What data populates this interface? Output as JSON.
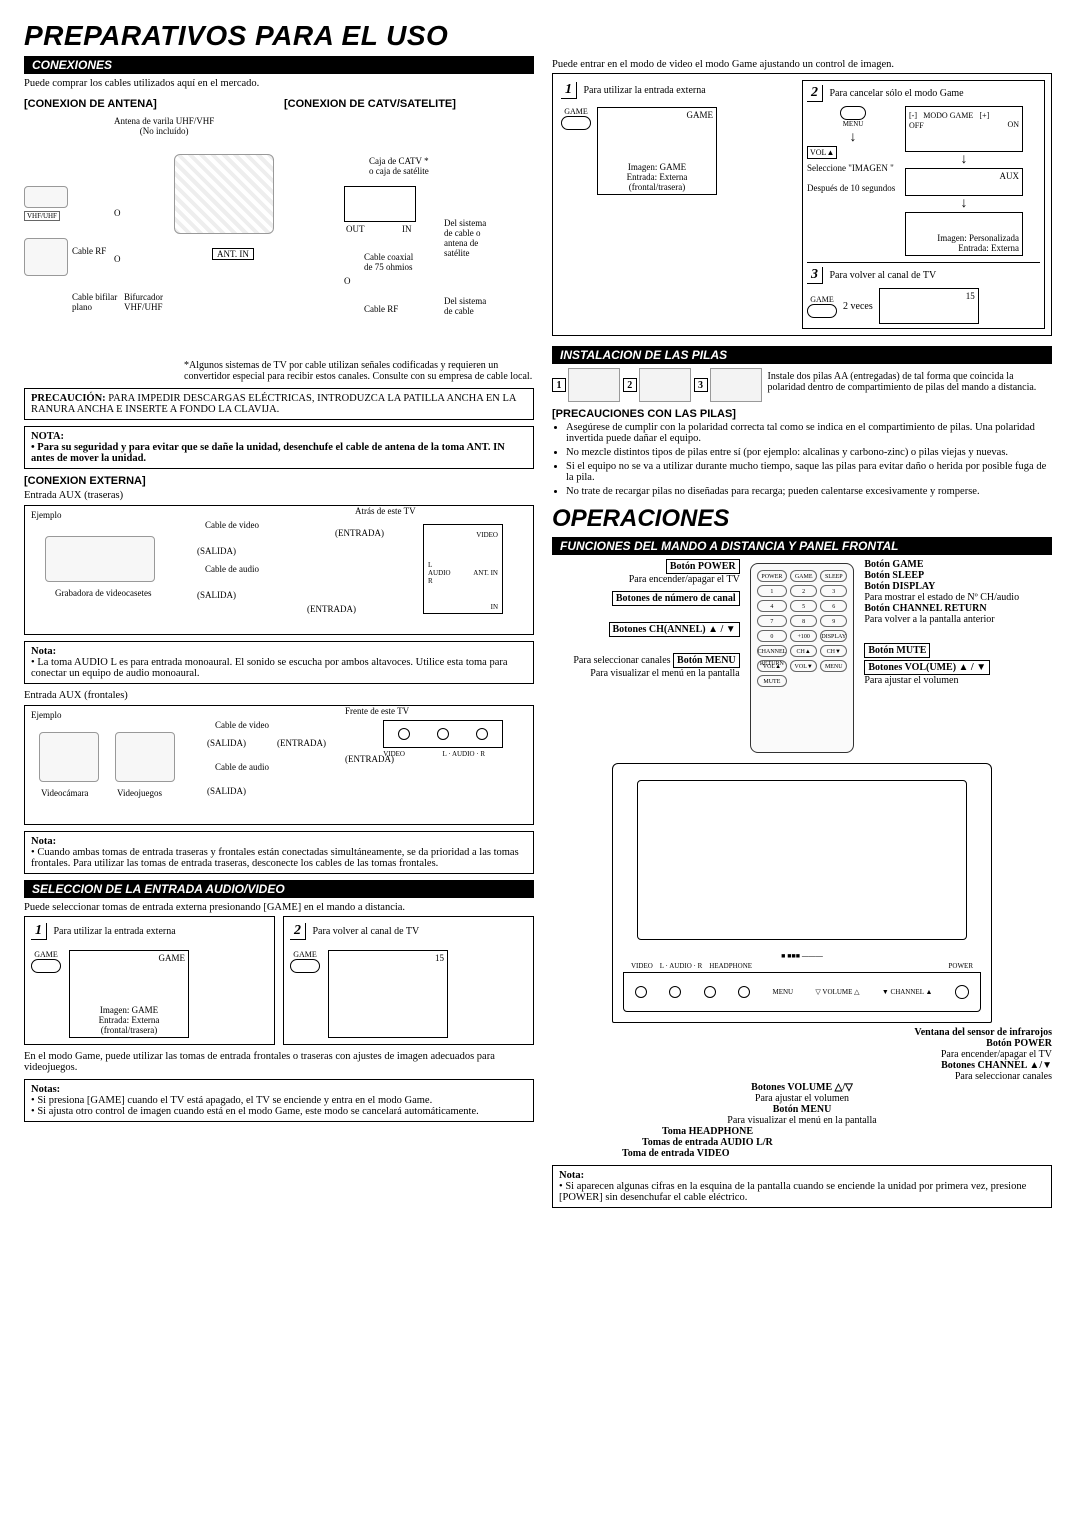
{
  "title_main": "PREPARATIVOS PARA EL USO",
  "title_ops": "OPERACIONES",
  "sections": {
    "conexiones": "CONEXIONES",
    "seleccion": "SELECCION DE LA ENTRADA AUDIO/VIDEO",
    "pilas": "INSTALACION DE LAS PILAS",
    "mando": "FUNCIONES DEL MANDO A DISTANCIA Y PANEL FRONTAL"
  },
  "left": {
    "intro": "Puede comprar los cables utilizados aquí en el mercado.",
    "ant_head": "[CONEXION DE ANTENA]",
    "catv_head": "[CONEXION DE CATV/SATELITE]",
    "ant_label": "Antena de varila UHF/VHF\n(No incluído)",
    "o_label": "O",
    "vhfuhf": "VHF/UHF",
    "cable_rf": "Cable RF",
    "bifurcador": "Bifurcador\nVHF/UHF",
    "bifilar": "Cable bifilar\nplano",
    "antin": "ANT. IN",
    "catv_box1": "Caja de CATV *\no caja de satélite",
    "catv_out": "OUT",
    "catv_in": "IN",
    "coax": "Cable coaxial\nde 75 ohmios",
    "sys_cable_sat": "Del sistema\nde cable o\nantena de\nsatélite",
    "sys_cable": "Del sistema\nde cable",
    "catv_foot": "*Algunos sistemas de TV por cable utilizan señales codificadas y requieren un convertidor especial para recibir estos canales. Consulte con su empresa de cable local.",
    "caution": "PRECAUCIÓN: PARA IMPEDIR DESCARGAS ELÉCTRICAS, INTRODUZCA LA PATILLA ANCHA EN LA RANURA ANCHA E INSERTE A FONDO LA CLAVIJA.",
    "nota1_h": "NOTA:",
    "nota1_b": "• Para su seguridad y para evitar que se dañe la unidad, desenchufe el cable de antena de la toma ANT. IN antes de mover la unidad.",
    "ext_head": "[CONEXION EXTERNA]",
    "aux_rear": "Entrada AUX (traseras)",
    "ejemplo": "Ejemplo",
    "vcr": "Grabadora de videocasetes",
    "cable_video": "Cable de video",
    "cable_audio": "Cable de audio",
    "salida": "(SALIDA)",
    "entrada": "(ENTRADA)",
    "atras": "Atrás de este TV",
    "video_j": "VIDEO",
    "laudio": "L",
    "raudio": "R",
    "audio_lbl": "AUDIO",
    "in_lbl": "IN",
    "nota2_h": "Nota:",
    "nota2_b": "La toma AUDIO L es para entrada monoaural. El sonido se escucha por ambos altavoces. Utilice esta toma para conectar un equipo de audio monoaural.",
    "aux_front": "Entrada AUX (frontales)",
    "frente": "Frente de este TV",
    "videocam": "Videocámara",
    "videojuegos": "Videojuegos",
    "l_audio_r": "L · AUDIO · R",
    "nota3_h": "Nota:",
    "nota3_b": "Cuando ambas tomas de entrada traseras y frontales están conectadas simultáneamente, se da prioridad a las tomas frontales. Para utilizar las tomas de entrada traseras, desconecte los cables de las tomas frontales.",
    "sel_intro": "Puede seleccionar tomas de entrada externa presionando [GAME] en el mando a distancia.",
    "step1": "Para utilizar la entrada externa",
    "step2": "Para volver al canal de TV",
    "game_txt": "GAME",
    "img_game": "Imagen: GAME",
    "ent_ext": "Entrada: Externa",
    "front_rear": "(frontal/trasera)",
    "ch15": "15",
    "game_mode_note": "En el modo Game, puede utilizar las tomas de entrada frontales o traseras con ajustes de imagen adecuados para videojuegos.",
    "notas_h": "Notas:",
    "notas_1": "Si presiona [GAME] cuando el TV está apagado, el TV se enciende y entra en el modo Game.",
    "notas_2": "Si ajusta otro control de imagen cuando está en el modo Game, este modo se cancelará automáticamente."
  },
  "right": {
    "top_intro": "Puede entrar en el modo de video el modo Game ajustando un control de imagen.",
    "s1": "Para utilizar la entrada externa",
    "s2": "Para cancelar sólo el modo Game",
    "s3": "Para volver al canal de TV",
    "menu": "MENU",
    "vol_up": "VOL▲",
    "sel_img": "Seleccione \"IMAGEN \"",
    "despues": "Después de 10 segundos",
    "modo_game": "MODO GAME",
    "off": "OFF",
    "on": "ON",
    "minus": "[-]",
    "plus": "[+]",
    "aux": "AUX",
    "img_pers": "Imagen: Personalizada",
    "ent_ext": "Entrada: Externa",
    "two_times": "2 veces",
    "game": "GAME",
    "img_game": "Imagen: GAME",
    "front_rear": "(frontal/trasera)",
    "ch15": "15",
    "pilas_text": "Instale dos pilas AA (entregadas) de tal forma que coincida la polaridad dentro de compartimiento de pilas del mando a distancia.",
    "prec_h": "[PRECAUCIONES CON LAS PILAS]",
    "prec_1": "Asegúrese de cumplir con la polaridad correcta tal como se indica en el compartimiento de pilas. Una polaridad invertida puede dañar el equipo.",
    "prec_2": "No mezcle distintos tipos de pilas entre sí (por ejemplo: alcalinas y carbono-zinc) o pilas viejas y nuevas.",
    "prec_3": "Si el equipo no se va a utilizar durante mucho tiempo, saque las pilas para evitar daño o herida por posible fuga de la pila.",
    "prec_4": "No trate de recargar pilas no diseñadas para recarga; pueden calentarse excesivamente y romperse.",
    "remote_btns": [
      "POWER",
      "GAME",
      "SLEEP",
      "1",
      "2",
      "3",
      "4",
      "5",
      "6",
      "7",
      "8",
      "9",
      "0",
      "+100",
      "DISPLAY",
      "CHANNEL RETURN",
      "CH▲",
      "CH▼",
      "VOL▲",
      "VOL▼",
      "MENU",
      "MUTE"
    ],
    "callouts_left": {
      "power_h": "Botón POWER",
      "power_t": "Para encender/apagar el TV",
      "num_h": "Botones de número de canal",
      "ch_h": "Botones CH(ANNEL) ▲ / ▼",
      "ch_t": "Para seleccionar canales",
      "menu_h": "Botón MENU",
      "menu_t": "Para visualizar el menú en la pantalla"
    },
    "callouts_right": {
      "game_h": "Botón GAME",
      "sleep_h": "Botón SLEEP",
      "disp_h": "Botón DISPLAY",
      "disp_t": "Para mostrar el estado de Nº CH/audio",
      "chret_h": "Botón CHANNEL RETURN",
      "chret_t": "Para volver a la pantalla anterior",
      "mute_h": "Botón MUTE",
      "vol_h": "Botones VOL(UME) ▲ / ▼",
      "vol_t": "Para ajustar el volumen"
    },
    "panel_labels": {
      "video": "VIDEO",
      "laudio": "L · AUDIO · R",
      "headphone": "HEADPHONE",
      "menu": "MENU",
      "volume": "▽ VOLUME △",
      "channel": "▼ CHANNEL ▲",
      "power": "POWER"
    },
    "panel_callouts": {
      "ir_h": "Ventana del sensor de infrarojos",
      "power_h": "Botón POWER",
      "power_t": "Para encender/apagar el TV",
      "ch_h": "Botones CHANNEL ▲/▼",
      "ch_t": "Para seleccionar canales",
      "vol_h": "Botones VOLUME △/▽",
      "vol_t": "Para ajustar el volumen",
      "menu_h": "Botón MENU",
      "menu_t": "Para visualizar el menú en la pantalla",
      "hp_h": "Toma HEADPHONE",
      "alr_h": "Tomas de entrada AUDIO L/R",
      "vid_h": "Toma de entrada VIDEO"
    },
    "final_note_h": "Nota:",
    "final_note_b": "Si aparecen algunas cifras en la esquina de la pantalla cuando se enciende la unidad por primera vez, presione [POWER] sin desenchufar el cable eléctrico."
  }
}
